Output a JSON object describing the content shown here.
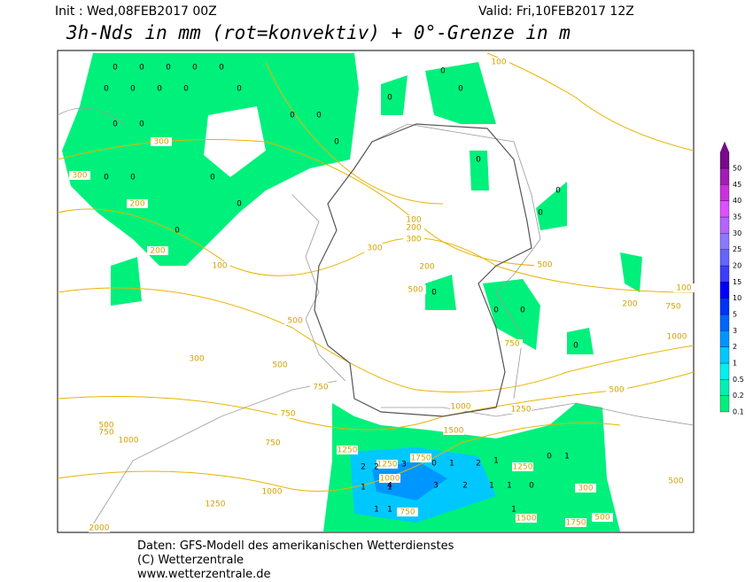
{
  "header": {
    "init": "Init : Wed,08FEB2017 00Z",
    "valid": "Valid: Fri,10FEB2017 12Z",
    "title": "3h-Nds in mm (rot=konvektiv) + 0°-Grenze in m"
  },
  "colorbar": {
    "levels": [
      {
        "label": "0.1",
        "color": "#00f07c"
      },
      {
        "label": "0.2",
        "color": "#00f0b4"
      },
      {
        "label": "0.5",
        "color": "#00f0f0"
      },
      {
        "label": "1",
        "color": "#00c8ff"
      },
      {
        "label": "2",
        "color": "#0096ff"
      },
      {
        "label": "3",
        "color": "#0064ff"
      },
      {
        "label": "5",
        "color": "#0032ff"
      },
      {
        "label": "10",
        "color": "#0000ff"
      },
      {
        "label": "15",
        "color": "#3c3cff"
      },
      {
        "label": "20",
        "color": "#6464ff"
      },
      {
        "label": "25",
        "color": "#8c78ff"
      },
      {
        "label": "30",
        "color": "#b464ff"
      },
      {
        "label": "35",
        "color": "#dc50ff"
      },
      {
        "label": "40",
        "color": "#c832dc"
      },
      {
        "label": "45",
        "color": "#a01eb4"
      },
      {
        "label": "50",
        "color": "#780a8c"
      }
    ]
  },
  "contour_labels": [
    "100",
    "300",
    "300",
    "200",
    "200",
    "100",
    "500",
    "300",
    "500",
    "750",
    "750",
    "750",
    "500",
    "750",
    "1000",
    "1000",
    "1250",
    "2000",
    "100",
    "200",
    "300",
    "300",
    "200",
    "500",
    "750",
    "1000",
    "1250",
    "1500",
    "1250",
    "500",
    "1000",
    "750",
    "200",
    "500",
    "100",
    "1750",
    "1250",
    "1000",
    "750",
    "1500",
    "1750",
    "500",
    "300",
    "1250",
    "500"
  ],
  "precip_markers": [
    "0",
    "0",
    "0",
    "0",
    "0",
    "0",
    "0",
    "0",
    "0",
    "0",
    "0",
    "0",
    "0",
    "0",
    "0",
    "0",
    "0",
    "0",
    "0",
    "0",
    "0",
    "0",
    "0",
    "0",
    "0",
    "0",
    "0",
    "0",
    "0",
    "0",
    "2",
    "2",
    "1",
    "4",
    "3",
    "3",
    "2",
    "1",
    "1",
    "1",
    "0",
    "1",
    "1",
    "1",
    "0",
    "2",
    "1",
    "1",
    "0",
    "1"
  ],
  "footer": {
    "line1": "Daten: GFS-Modell des amerikanischen Wetterdienstes",
    "line2": "(C) Wetterzentrale",
    "line3": "www.wetterzentrale.de"
  }
}
